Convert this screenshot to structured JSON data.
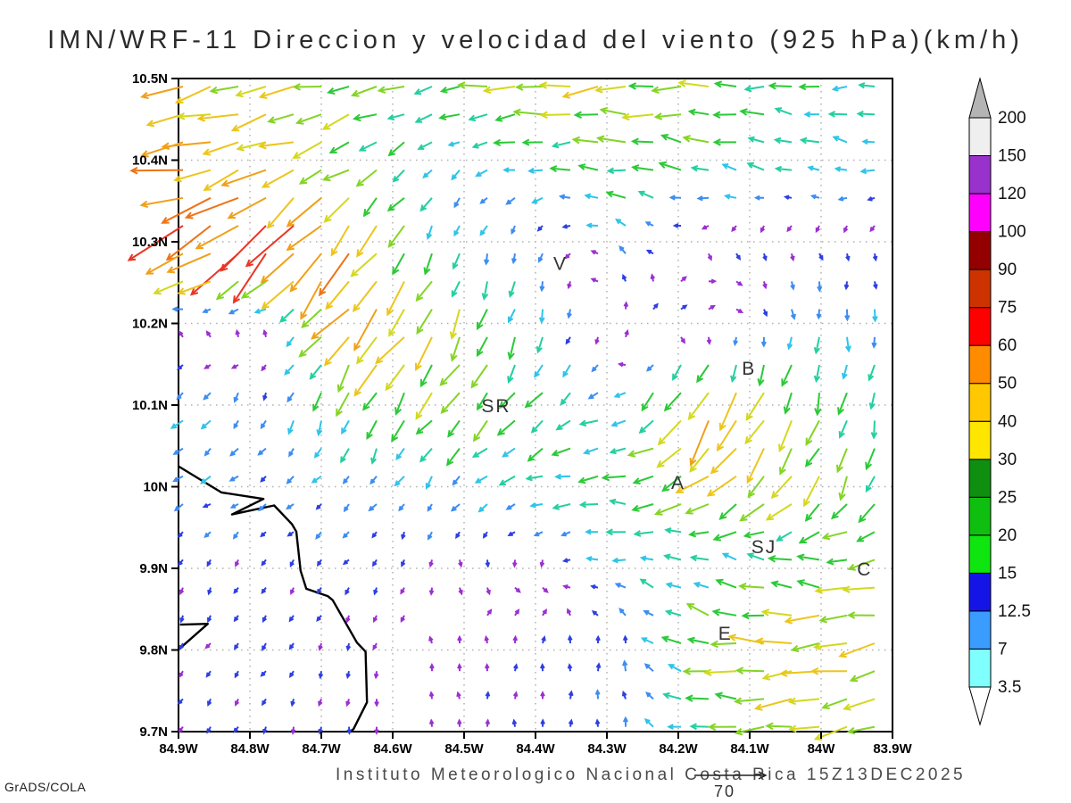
{
  "title": "IMN/WRF-11 Direccion y velocidad del viento (925 hPa)(km/h)",
  "caption": "Instituto Meteorologico Nacional Costa Rica 15Z13DEC2025",
  "credit": "GrADS/COLA",
  "ref_vector": {
    "label": "70"
  },
  "axes": {
    "x_ticks": [
      "84.9W",
      "84.8W",
      "84.7W",
      "84.6W",
      "84.5W",
      "84.4W",
      "84.3W",
      "84.2W",
      "84.1W",
      "84W",
      "83.9W"
    ],
    "y_ticks": [
      "10.5N",
      "10.4N",
      "10.3N",
      "10.2N",
      "10.1N",
      "10N",
      "9.9N",
      "9.8N",
      "9.7N"
    ]
  },
  "colorbar": {
    "labels_bottom_to_top": [
      "3.5",
      "7",
      "12.5",
      "15",
      "20",
      "25",
      "30",
      "40",
      "50",
      "60",
      "75",
      "90",
      "100",
      "120",
      "150",
      "200"
    ],
    "segment_colors_bottom_to_top": [
      "#80ffff",
      "#3a9cff",
      "#1414e6",
      "#0fe60f",
      "#0fbf0f",
      "#0f8f0f",
      "#ffe600",
      "#ffc800",
      "#ff8c00",
      "#ff0000",
      "#cc3300",
      "#940000",
      "#ff00ff",
      "#9932cc",
      "#efefef"
    ],
    "under_color": "#ffffff",
    "over_color": "#b4b4b4"
  },
  "map": {
    "cities": [
      {
        "label": "V",
        "lon": -84.365,
        "lat": 10.273
      },
      {
        "label": "B",
        "lon": -84.101,
        "lat": 10.145
      },
      {
        "label": "SR",
        "lon": -84.455,
        "lat": 10.099
      },
      {
        "label": "A",
        "lon": -84.2,
        "lat": 10.005
      },
      {
        "label": "SJ",
        "lon": -84.08,
        "lat": 9.926
      },
      {
        "label": "C",
        "lon": -83.939,
        "lat": 9.899
      },
      {
        "label": "E",
        "lon": -84.134,
        "lat": 9.82
      }
    ],
    "coastline": [
      [
        [
          -84.9,
          10.025
        ],
        [
          -84.84,
          9.993
        ],
        [
          -84.781,
          9.985
        ],
        [
          -84.825,
          9.966
        ],
        [
          -84.766,
          9.977
        ],
        [
          -84.741,
          9.954
        ],
        [
          -84.735,
          9.945
        ],
        [
          -84.729,
          9.897
        ],
        [
          -84.721,
          9.875
        ],
        [
          -84.691,
          9.866
        ],
        [
          -84.684,
          9.861
        ],
        [
          -84.65,
          9.809
        ],
        [
          -84.638,
          9.798
        ],
        [
          -84.636,
          9.736
        ],
        [
          -84.655,
          9.703
        ],
        [
          -84.66,
          9.7
        ]
      ],
      [
        [
          -84.898,
          9.831
        ],
        [
          -84.859,
          9.832
        ],
        [
          -84.898,
          9.802
        ]
      ]
    ]
  },
  "chart_data": {
    "type": "vector_field",
    "variable": "wind direction and speed",
    "units": "km/h",
    "level": "925 hPa",
    "lon_range": [
      -84.9,
      -83.9
    ],
    "lat_range": [
      9.7,
      10.5
    ],
    "display_grid": {
      "cols": 26,
      "rows": 24
    },
    "dir_convention": "degrees CCW from east; heading the arrow points toward",
    "control_lons": [
      -84.9,
      -84.775,
      -84.65,
      -84.525,
      -84.4,
      -84.275,
      -84.15,
      -84.025,
      -83.9
    ],
    "control_lats": [
      10.5,
      10.4,
      10.3,
      10.2,
      10.1,
      10.0,
      9.9,
      9.8,
      9.7
    ],
    "control_field_dir_speed": [
      [
        [
          195,
          35
        ],
        [
          192,
          30
        ],
        [
          195,
          25
        ],
        [
          190,
          20
        ],
        [
          185,
          32
        ],
        [
          185,
          30
        ],
        [
          182,
          25
        ],
        [
          180,
          18
        ],
        [
          185,
          15
        ]
      ],
      [
        [
          188,
          45
        ],
        [
          198,
          35
        ],
        [
          212,
          22
        ],
        [
          225,
          10
        ],
        [
          180,
          15
        ],
        [
          172,
          22
        ],
        [
          165,
          20
        ],
        [
          162,
          15
        ],
        [
          178,
          12
        ]
      ],
      [
        [
          205,
          55
        ],
        [
          225,
          65
        ],
        [
          235,
          40
        ],
        [
          252,
          12
        ],
        [
          265,
          7
        ],
        [
          140,
          10
        ],
        [
          290,
          5
        ],
        [
          300,
          4
        ],
        [
          280,
          5
        ]
      ],
      [
        [
          95,
          4
        ],
        [
          90,
          5
        ],
        [
          228,
          45
        ],
        [
          245,
          30
        ],
        [
          258,
          15
        ],
        [
          50,
          5
        ],
        [
          35,
          6
        ],
        [
          268,
          12
        ],
        [
          270,
          10
        ]
      ],
      [
        [
          225,
          12
        ],
        [
          250,
          9
        ],
        [
          250,
          20
        ],
        [
          230,
          25
        ],
        [
          228,
          20
        ],
        [
          200,
          12
        ],
        [
          240,
          45
        ],
        [
          250,
          25
        ],
        [
          258,
          15
        ]
      ],
      [
        [
          205,
          10
        ],
        [
          212,
          8
        ],
        [
          225,
          8
        ],
        [
          235,
          10
        ],
        [
          192,
          15
        ],
        [
          182,
          20
        ],
        [
          212,
          30
        ],
        [
          235,
          30
        ],
        [
          252,
          18
        ]
      ],
      [
        [
          252,
          5
        ],
        [
          242,
          5
        ],
        [
          232,
          6
        ],
        [
          280,
          4
        ],
        [
          300,
          4
        ],
        [
          172,
          12
        ],
        [
          152,
          15
        ],
        [
          162,
          20
        ],
        [
          188,
          30
        ]
      ],
      [
        [
          240,
          5
        ],
        [
          232,
          6
        ],
        [
          262,
          5
        ],
        [
          100,
          4
        ],
        [
          82,
          5
        ],
        [
          92,
          8
        ],
        [
          172,
          25
        ],
        [
          185,
          35
        ],
        [
          200,
          30
        ]
      ],
      [
        [
          232,
          5
        ],
        [
          250,
          5
        ],
        [
          270,
          4
        ],
        [
          92,
          4
        ],
        [
          86,
          5
        ],
        [
          95,
          8
        ],
        [
          180,
          20
        ],
        [
          190,
          30
        ],
        [
          195,
          25
        ]
      ]
    ],
    "speed_color_scale": [
      {
        "max": 4.5,
        "color": "#9c2fd2"
      },
      {
        "max": 7,
        "color": "#2e3fe2"
      },
      {
        "max": 10,
        "color": "#3d8df2"
      },
      {
        "max": 14,
        "color": "#2fc4e8"
      },
      {
        "max": 18,
        "color": "#24cfa0"
      },
      {
        "max": 23,
        "color": "#2cc937"
      },
      {
        "max": 28,
        "color": "#84d426"
      },
      {
        "max": 33,
        "color": "#d4d81e"
      },
      {
        "max": 40,
        "color": "#ecc51c"
      },
      {
        "max": 48,
        "color": "#f0a019"
      },
      {
        "max": 56,
        "color": "#ee7316"
      },
      {
        "max": 66,
        "color": "#ea3524"
      },
      {
        "max": 1000,
        "color": "#f23d86"
      }
    ],
    "reference_vector_kmh": 70
  }
}
